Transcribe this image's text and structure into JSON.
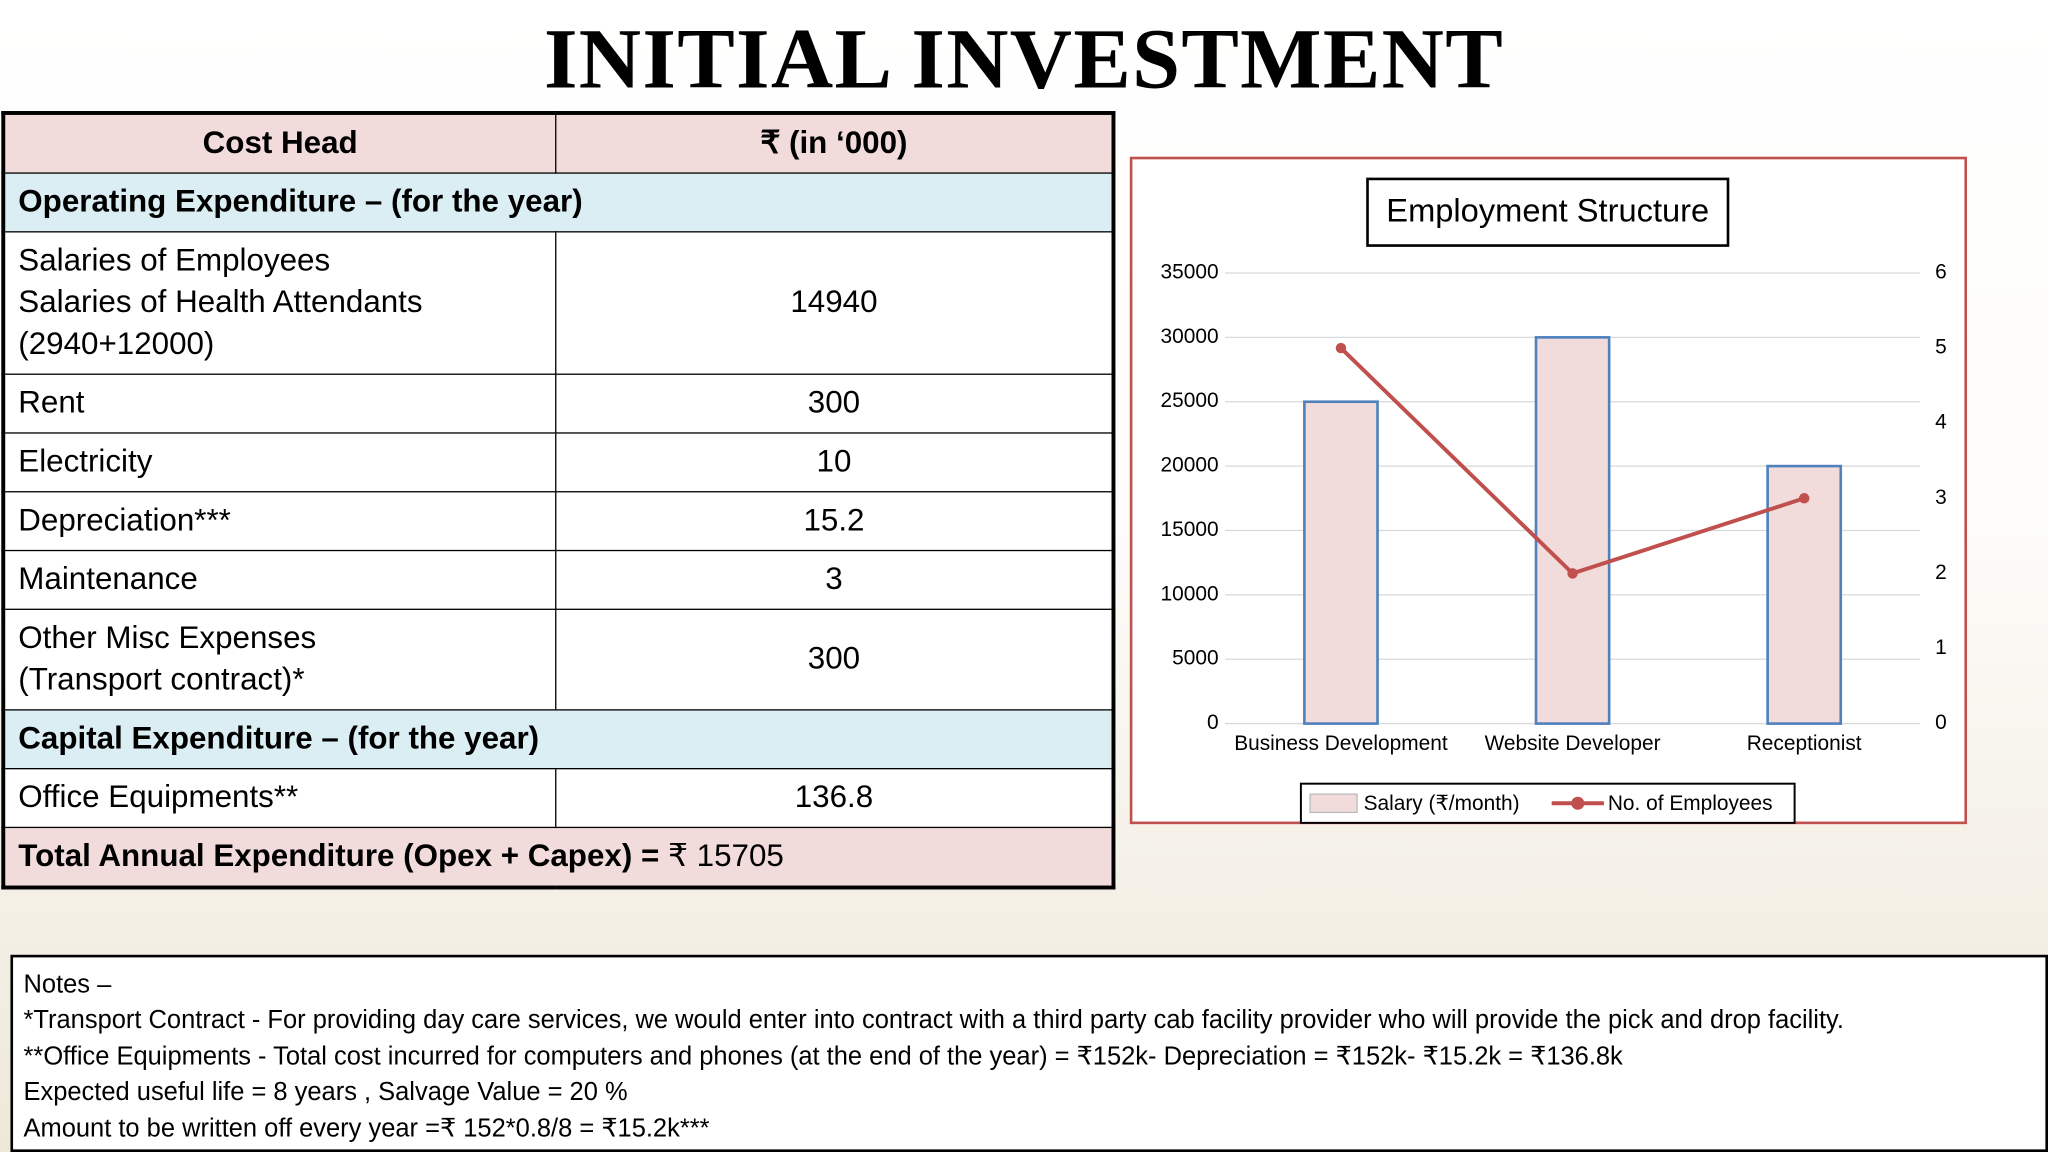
{
  "title": "INITIAL INVESTMENT",
  "table": {
    "header": [
      "Cost Head",
      "₹ (in ‘000)"
    ],
    "rows": [
      [
        "Operating Expenditure – (for the year)"
      ],
      [
        [
          "Salaries of Employees",
          "Salaries of Health Attendants",
          "(2940+12000)"
        ],
        "14940"
      ],
      [
        "Rent",
        "300"
      ],
      [
        "Electricity",
        "10"
      ],
      [
        "Depreciation***",
        "15.2"
      ],
      [
        "Maintenance",
        "3"
      ],
      [
        [
          "Other Misc Expenses",
          "(Transport contract)*"
        ],
        "300"
      ],
      [
        "Capital Expenditure – (for the year)"
      ],
      [
        "Office Equipments**",
        "136.8"
      ]
    ],
    "total": {
      "label": "Total Annual Expenditure (Opex + Capex) =",
      "value": "₹ 15705"
    }
  },
  "chart_data": {
    "type": "bar-line",
    "title": "Employment Structure",
    "categories": [
      "Business Development",
      "Website Developer",
      "Receptionist"
    ],
    "series": [
      {
        "name": "Salary (₹/month)",
        "type": "bar",
        "color": "#f2dcdb",
        "edge": "#4f81bd",
        "values": [
          25000,
          30000,
          20000
        ]
      },
      {
        "name": "No. of Employees",
        "type": "line",
        "color": "#c0504d",
        "axis": "y2",
        "values": [
          5,
          2,
          3
        ]
      }
    ],
    "ylim": [
      0,
      35000
    ],
    "yticks": [
      0,
      5000,
      10000,
      15000,
      20000,
      25000,
      30000,
      35000
    ],
    "y2lim": [
      0,
      6
    ],
    "y2ticks": [
      0,
      1,
      2,
      3,
      4,
      5,
      6
    ],
    "grid": true,
    "legend": "bottom"
  },
  "notes": {
    "heading": "Notes –",
    "lines": [
      "*Transport Contract - For providing day care services, we would enter into contract with a third party cab facility provider who will provide the pick and drop facility.",
      "**Office Equipments - Total cost incurred for computers and phones (at the end of the year) = ₹152k- Depreciation = ₹152k- ₹15.2k = ₹136.8k",
      "Expected useful life = 8 years , Salvage Value = 20 %",
      "Amount to be written off every year =₹ 152*0.8/8 = ₹15.2k***"
    ]
  }
}
